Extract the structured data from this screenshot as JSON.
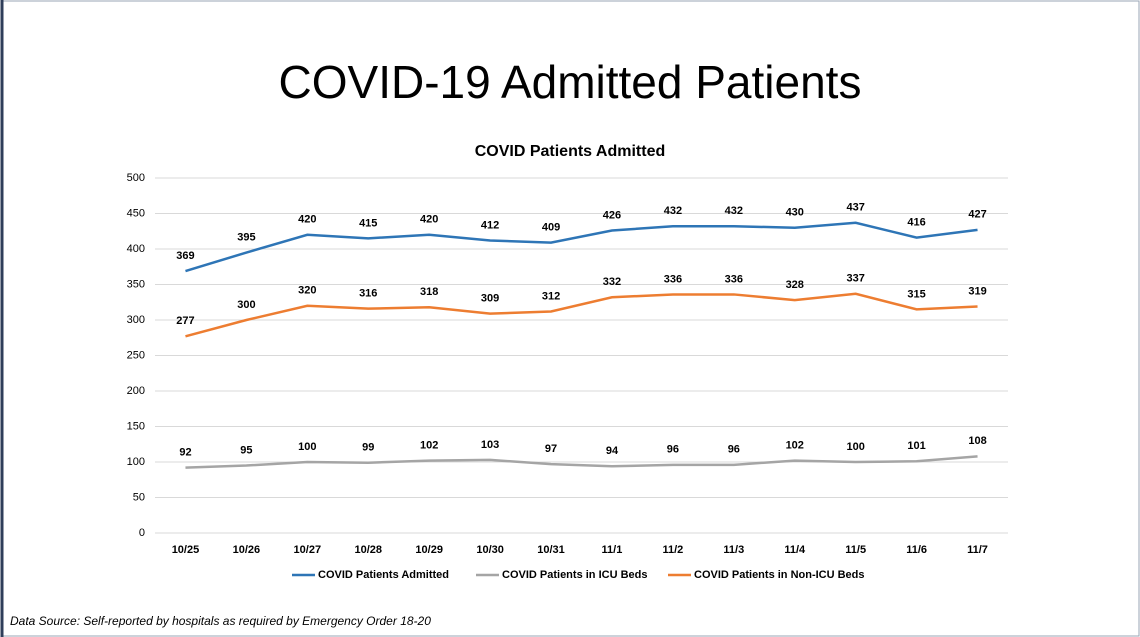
{
  "title": "COVID-19 Admitted Patients",
  "footer": "Data Source: Self-reported by hospitals as required by Emergency Order 18-20",
  "chart_data": {
    "type": "line",
    "title": "COVID Patients Admitted",
    "categories": [
      "10/25",
      "10/26",
      "10/27",
      "10/28",
      "10/29",
      "10/30",
      "10/31",
      "11/1",
      "11/2",
      "11/3",
      "11/4",
      "11/5",
      "11/6",
      "11/7"
    ],
    "series": [
      {
        "name": "COVID Patients Admitted",
        "color": "#2e75b6",
        "values": [
          369,
          395,
          420,
          415,
          420,
          412,
          409,
          426,
          432,
          432,
          430,
          437,
          416,
          427
        ]
      },
      {
        "name": "COVID Patients in ICU Beds",
        "color": "#a5a5a5",
        "values": [
          92,
          95,
          100,
          99,
          102,
          103,
          97,
          94,
          96,
          96,
          102,
          100,
          101,
          108
        ]
      },
      {
        "name": "COVID Patients in Non-ICU Beds",
        "color": "#ed7d31",
        "values": [
          277,
          300,
          320,
          316,
          318,
          309,
          312,
          332,
          336,
          336,
          328,
          337,
          315,
          319
        ]
      }
    ],
    "ylim": [
      0,
      500
    ],
    "yticks": [
      0,
      50,
      100,
      150,
      200,
      250,
      300,
      350,
      400,
      450,
      500
    ],
    "grid": true,
    "legend": "bottom"
  }
}
